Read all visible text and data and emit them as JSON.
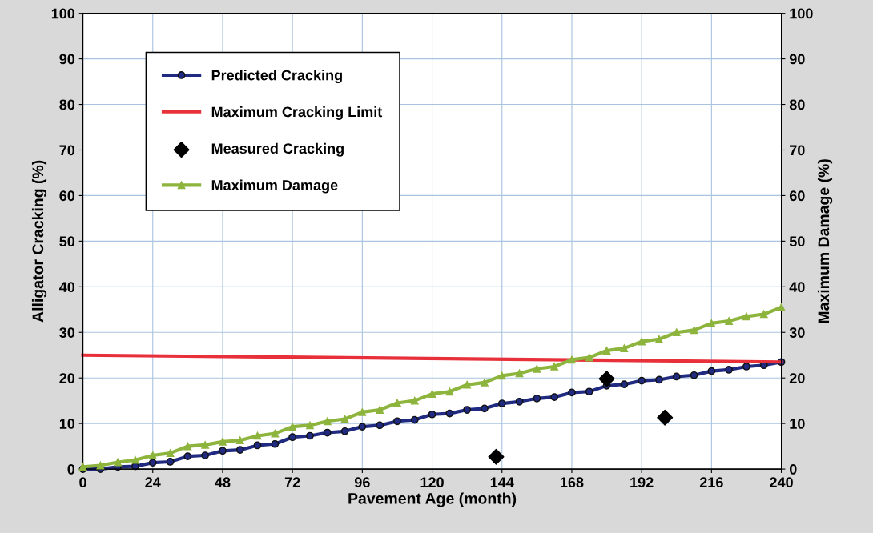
{
  "chart_data": {
    "type": "line",
    "xlabel": "Pavement Age (month)",
    "ylabel": "Alligator Cracking (%)",
    "y2label": "Maximum Damage (%)",
    "xlim": [
      0,
      240
    ],
    "xticks": [
      0,
      24,
      48,
      72,
      96,
      120,
      144,
      168,
      192,
      216,
      240
    ],
    "ylim": [
      0,
      100
    ],
    "yticks": [
      0,
      10,
      20,
      30,
      40,
      50,
      60,
      70,
      80,
      90,
      100
    ],
    "y2lim": [
      0,
      100
    ],
    "y2ticks": [
      0,
      10,
      20,
      30,
      40,
      50,
      60,
      70,
      80,
      90,
      100
    ],
    "grid": true,
    "legend": "top left",
    "series": [
      {
        "name": "Predicted Cracking",
        "color": "#1f2a80",
        "marker": "circle",
        "x": [
          0,
          6,
          12,
          18,
          24,
          30,
          36,
          42,
          48,
          54,
          60,
          66,
          72,
          78,
          84,
          90,
          96,
          102,
          108,
          114,
          120,
          126,
          132,
          138,
          144,
          150,
          156,
          162,
          168,
          174,
          180,
          186,
          192,
          198,
          204,
          210,
          216,
          222,
          228,
          234,
          240
        ],
        "values": [
          0,
          0,
          0.5,
          0.6,
          1.4,
          1.6,
          2.8,
          3,
          4,
          4.2,
          5.2,
          5.5,
          7,
          7.3,
          8,
          8.3,
          9.3,
          9.6,
          10.5,
          10.8,
          12,
          12.2,
          13,
          13.3,
          14.4,
          14.8,
          15.5,
          15.8,
          16.8,
          17,
          18.3,
          18.6,
          19.4,
          19.6,
          20.3,
          20.6,
          21.5,
          21.8,
          22.5,
          22.8,
          23.5
        ]
      },
      {
        "name": "Maximum Cracking Limit",
        "color": "#e8303a",
        "marker": "none",
        "x": [
          0,
          240
        ],
        "values": [
          25,
          23.5
        ]
      },
      {
        "name": "Measured Cracking",
        "type": "scatter",
        "color": "#000000",
        "marker": "diamond",
        "x": [
          142,
          180,
          200
        ],
        "values": [
          2.7,
          19.8,
          11.3
        ]
      },
      {
        "name": "Maximum Damage",
        "axis": "y2",
        "color": "#8db43c",
        "marker": "triangle",
        "x": [
          0,
          6,
          12,
          18,
          24,
          30,
          36,
          42,
          48,
          54,
          60,
          66,
          72,
          78,
          84,
          90,
          96,
          102,
          108,
          114,
          120,
          126,
          132,
          138,
          144,
          150,
          156,
          162,
          168,
          174,
          180,
          186,
          192,
          198,
          204,
          210,
          216,
          222,
          228,
          234,
          240
        ],
        "values": [
          0.5,
          0.8,
          1.5,
          2,
          3,
          3.5,
          5,
          5.3,
          6,
          6.3,
          7.3,
          7.8,
          9.3,
          9.6,
          10.5,
          11,
          12.5,
          13,
          14.5,
          15,
          16.5,
          17,
          18.5,
          19,
          20.5,
          21,
          22,
          22.5,
          24,
          24.5,
          26,
          26.5,
          28,
          28.5,
          30,
          30.5,
          32,
          32.5,
          33.5,
          34,
          35.5
        ]
      }
    ]
  }
}
